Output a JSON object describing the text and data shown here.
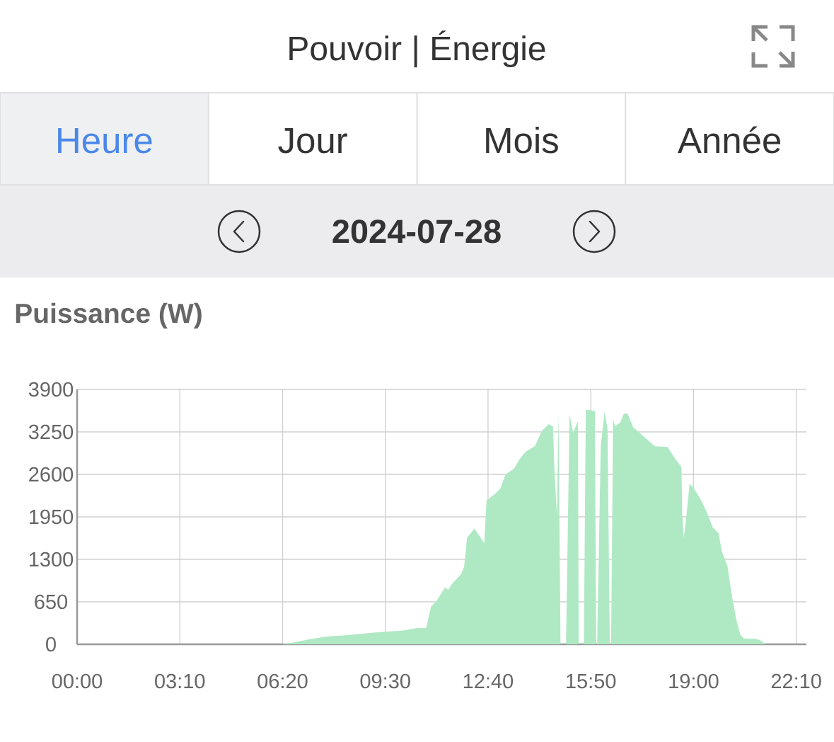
{
  "chart_data": {
    "type": "area",
    "title": "Pouvoir | Énergie",
    "subtitle": "2024-07-28",
    "ylabel": "Puissance (W)",
    "annotations": [
      "Heure",
      "Jour",
      "Mois",
      "Année"
    ],
    "x": [
      0,
      6.32,
      6.36,
      6.58,
      6.9,
      7.22,
      7.71,
      8.35,
      9.2,
      10.06,
      10.48,
      10.76,
      10.91,
      11.06,
      11.34,
      11.44,
      11.55,
      11.83,
      11.93,
      12.02,
      12.25,
      12.4,
      12.55,
      12.62,
      12.9,
      13.04,
      13.21,
      13.47,
      13.62,
      13.83,
      14.11,
      14.33,
      14.54,
      14.67,
      14.71,
      14.79,
      14.84,
      14.9,
      15.03,
      15.07,
      15.18,
      15.29,
      15.39,
      15.44,
      15.46,
      15.62,
      15.68,
      15.96,
      16.0,
      16.03,
      16.14,
      16.26,
      16.35,
      16.42,
      16.46,
      16.52,
      16.59,
      16.74,
      16.85,
      16.97,
      17.14,
      17.31,
      17.46,
      17.6,
      17.81,
      18.2,
      18.42,
      18.63,
      18.65,
      18.7,
      18.77,
      18.88,
      19.02,
      19.24,
      19.41,
      19.59,
      19.77,
      19.88,
      20.05,
      20.2,
      20.34,
      20.45,
      20.55,
      20.94,
      21.09,
      21.23
    ],
    "series": [
      {
        "color": "#aee9c4",
        "values": [
          0,
          0,
          10,
          20,
          50,
          80,
          120,
          140,
          180,
          210,
          250,
          250,
          580,
          650,
          870,
          830,
          920,
          1070,
          1190,
          1630,
          1770,
          1660,
          1550,
          2200,
          2310,
          2380,
          2600,
          2690,
          2820,
          2950,
          3030,
          3270,
          3370,
          3330,
          2710,
          1950,
          3520,
          0,
          0,
          0,
          3520,
          3230,
          3360,
          3410,
          0,
          0,
          3590,
          3570,
          0,
          0,
          3030,
          3560,
          3290,
          0,
          0,
          3430,
          3340,
          3390,
          3530,
          3530,
          3320,
          3250,
          3180,
          3120,
          3030,
          3020,
          2850,
          2710,
          1990,
          1630,
          1910,
          2460,
          2380,
          2200,
          2020,
          1790,
          1700,
          1410,
          1190,
          690,
          330,
          140,
          90,
          80,
          50,
          0
        ]
      }
    ],
    "xlim": [
      0,
      22.48
    ],
    "xticks": [
      {
        "value": 0,
        "label": "00:00"
      },
      {
        "value": 3.1667,
        "label": "03:10"
      },
      {
        "value": 6.3333,
        "label": "06:20"
      },
      {
        "value": 9.5,
        "label": "09:30"
      },
      {
        "value": 12.6667,
        "label": "12:40"
      },
      {
        "value": 15.8333,
        "label": "15:50"
      },
      {
        "value": 19,
        "label": "19:00"
      },
      {
        "value": 22.1667,
        "label": "22:10"
      }
    ],
    "ylim": [
      0,
      3900
    ],
    "yticks": [
      0,
      650,
      1300,
      1950,
      2600,
      3250,
      3900
    ],
    "grid": true
  }
}
